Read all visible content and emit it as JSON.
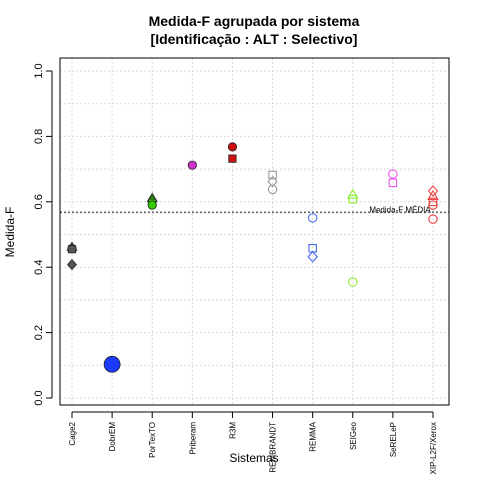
{
  "chart_data": {
    "type": "scatter",
    "title": [
      "Medida-F agrupada por sistema",
      "[Identificação : ALT : Selectivo]"
    ],
    "xlabel": "Sistemas",
    "ylabel": "Medida-F",
    "ylim": [
      0.0,
      1.0
    ],
    "yticks": [
      "0.0",
      "0.2",
      "0.4",
      "0.6",
      "0.8",
      "1.0"
    ],
    "grid": true,
    "categories": [
      "Cage2",
      "DobrEM",
      "PorTexTO",
      "Priberam",
      "R3M",
      "REMBRANDT",
      "REMMA",
      "SEIGeo",
      "SeRELeP",
      "XIP-L2F/Xerox"
    ],
    "reference_line": {
      "label": "Medida-F MÉDIA",
      "value": 0.568
    },
    "colors": {
      "Cage2": "#555555",
      "DobrEM": "#1a3bff",
      "PorTexTO": "#33cc00",
      "Priberam": "#cc33cc",
      "R3M": "#cc1111",
      "REMBRANDT": "#999999",
      "REMMA": "#4466ee",
      "SEIGeo": "#88ee33",
      "SeRELeP": "#ee55ee",
      "XIP-L2F/Xerox": "#ee4444"
    },
    "points": [
      {
        "system": "Cage2",
        "y": 0.461,
        "shape": "triangle",
        "filled": true
      },
      {
        "system": "Cage2",
        "y": 0.457,
        "shape": "circle",
        "filled": true
      },
      {
        "system": "Cage2",
        "y": 0.455,
        "shape": "square",
        "filled": true
      },
      {
        "system": "Cage2",
        "y": 0.408,
        "shape": "diamond",
        "filled": true
      },
      {
        "system": "DobrEM",
        "y": 0.103,
        "shape": "circle",
        "filled": true,
        "large": true
      },
      {
        "system": "PorTexTO",
        "y": 0.611,
        "shape": "triangle",
        "filled": true
      },
      {
        "system": "PorTexTO",
        "y": 0.603,
        "shape": "diamond",
        "filled": true
      },
      {
        "system": "PorTexTO",
        "y": 0.597,
        "shape": "square",
        "filled": true
      },
      {
        "system": "PorTexTO",
        "y": 0.59,
        "shape": "circle",
        "filled": true
      },
      {
        "system": "Priberam",
        "y": 0.712,
        "shape": "circle",
        "filled": true
      },
      {
        "system": "R3M",
        "y": 0.768,
        "shape": "circle",
        "filled": true
      },
      {
        "system": "R3M",
        "y": 0.732,
        "shape": "square",
        "filled": true
      },
      {
        "system": "REMBRANDT",
        "y": 0.682,
        "shape": "square",
        "filled": false
      },
      {
        "system": "REMBRANDT",
        "y": 0.662,
        "shape": "diamond",
        "filled": false
      },
      {
        "system": "REMBRANDT",
        "y": 0.638,
        "shape": "circle",
        "filled": false
      },
      {
        "system": "REMMA",
        "y": 0.551,
        "shape": "circle",
        "filled": false
      },
      {
        "system": "REMMA",
        "y": 0.458,
        "shape": "square",
        "filled": false
      },
      {
        "system": "REMMA",
        "y": 0.432,
        "shape": "diamond",
        "filled": false
      },
      {
        "system": "SEIGeo",
        "y": 0.622,
        "shape": "triangle",
        "filled": false
      },
      {
        "system": "SEIGeo",
        "y": 0.608,
        "shape": "square",
        "filled": false
      },
      {
        "system": "SEIGeo",
        "y": 0.355,
        "shape": "circle",
        "filled": false
      },
      {
        "system": "SeRELeP",
        "y": 0.685,
        "shape": "circle",
        "filled": false
      },
      {
        "system": "SeRELeP",
        "y": 0.658,
        "shape": "square",
        "filled": false
      },
      {
        "system": "XIP-L2F/Xerox",
        "y": 0.633,
        "shape": "diamond",
        "filled": false
      },
      {
        "system": "XIP-L2F/Xerox",
        "y": 0.618,
        "shape": "triangle",
        "filled": false
      },
      {
        "system": "XIP-L2F/Xerox",
        "y": 0.6,
        "shape": "square",
        "filled": false
      },
      {
        "system": "XIP-L2F/Xerox",
        "y": 0.59,
        "shape": "circle",
        "filled": false
      },
      {
        "system": "XIP-L2F/Xerox",
        "y": 0.547,
        "shape": "circle",
        "filled": false
      }
    ]
  }
}
